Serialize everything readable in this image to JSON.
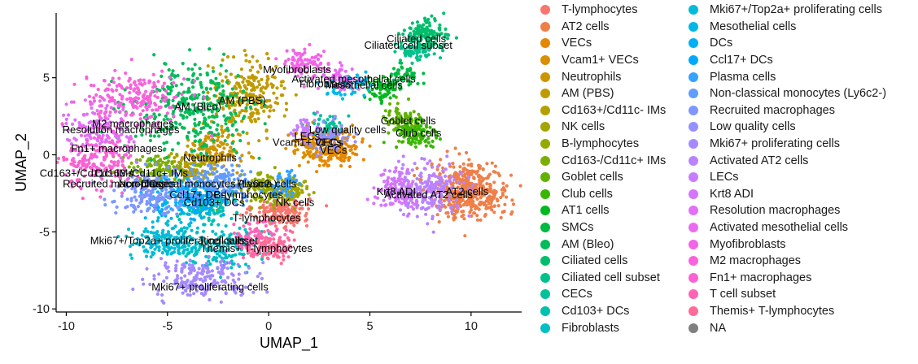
{
  "chart_data": {
    "type": "scatter",
    "title": "",
    "xlabel": "UMAP_1",
    "ylabel": "UMAP_2",
    "xlim": [
      -10.5,
      12.5
    ],
    "ylim": [
      -10.2,
      9.2
    ],
    "x_ticks": [
      {
        "value": -10,
        "label": "-10"
      },
      {
        "value": -5,
        "label": "-5"
      },
      {
        "value": 0,
        "label": "0"
      },
      {
        "value": 5,
        "label": "5"
      },
      {
        "value": 10,
        "label": "10"
      }
    ],
    "y_ticks": [
      {
        "value": -10,
        "label": "-10"
      },
      {
        "value": -5,
        "label": "-5"
      },
      {
        "value": 0,
        "label": "0"
      },
      {
        "value": 5,
        "label": "5"
      }
    ],
    "grid": false,
    "legend_position": "right",
    "clusters": [
      {
        "name": "T-lymphocytes",
        "color": "#F8766D",
        "center": [
          0.6,
          -3.7
        ],
        "spread": [
          0.7,
          0.5
        ],
        "n": 170
      },
      {
        "name": "AT2 cells",
        "color": "#EF7F49",
        "center": [
          9.9,
          -2.3
        ],
        "spread": [
          1.0,
          0.9
        ],
        "n": 460
      },
      {
        "name": "VECs",
        "color": "#E58700",
        "center": [
          3.3,
          0.4
        ],
        "spread": [
          0.6,
          0.6
        ],
        "n": 160
      },
      {
        "name": "Vcam1+ VECs",
        "color": "#D98F00",
        "center": [
          2.0,
          0.7
        ],
        "spread": [
          0.5,
          0.5
        ],
        "n": 90
      },
      {
        "name": "Neutrophils",
        "color": "#CC9600",
        "center": [
          -2.8,
          0.2
        ],
        "spread": [
          0.7,
          0.6
        ],
        "n": 150
      },
      {
        "name": "AM (PBS)",
        "color": "#C09B00",
        "center": [
          -1.0,
          3.9
        ],
        "spread": [
          0.9,
          1.1
        ],
        "n": 240
      },
      {
        "name": "Cd163+/Cd11c- IMs",
        "color": "#B3A000",
        "center": [
          -3.8,
          -1.0
        ],
        "spread": [
          0.6,
          0.5
        ],
        "n": 90
      },
      {
        "name": "NK cells",
        "color": "#A3A500",
        "center": [
          1.0,
          -2.3
        ],
        "spread": [
          0.5,
          0.4
        ],
        "n": 100
      },
      {
        "name": "B-lymphocytes",
        "color": "#93AA00",
        "center": [
          -0.2,
          -2.2
        ],
        "spread": [
          0.6,
          0.5
        ],
        "n": 110
      },
      {
        "name": "Cd163-/Cd11c+ IMs",
        "color": "#7CAE00",
        "center": [
          -5.5,
          -0.9
        ],
        "spread": [
          0.8,
          0.5
        ],
        "n": 110
      },
      {
        "name": "Goblet cells",
        "color": "#61B200",
        "center": [
          6.6,
          2.2
        ],
        "spread": [
          0.5,
          0.6
        ],
        "n": 90
      },
      {
        "name": "Club cells",
        "color": "#39B600",
        "center": [
          7.3,
          1.3
        ],
        "spread": [
          0.5,
          0.5
        ],
        "n": 100
      },
      {
        "name": "AT1 cells",
        "color": "#00B81F",
        "center": [
          5.6,
          4.2
        ],
        "spread": [
          0.5,
          0.5
        ],
        "n": 60
      },
      {
        "name": "SMCs",
        "color": "#00BA42",
        "center": [
          6.6,
          5.1
        ],
        "spread": [
          0.4,
          0.4
        ],
        "n": 50
      },
      {
        "name": "AM (Bleo)",
        "color": "#00BC59",
        "center": [
          -3.7,
          2.9
        ],
        "spread": [
          1.5,
          1.4
        ],
        "n": 330
      },
      {
        "name": "Ciliated cells",
        "color": "#00BE6C",
        "center": [
          7.7,
          7.8
        ],
        "spread": [
          0.5,
          0.5
        ],
        "n": 130
      },
      {
        "name": "Ciliated cell subset",
        "color": "#00C08B",
        "center": [
          7.3,
          6.9
        ],
        "spread": [
          0.5,
          0.4
        ],
        "n": 70
      },
      {
        "name": "CECs",
        "color": "#00C19A",
        "center": [
          3.0,
          1.9
        ],
        "spread": [
          0.4,
          0.4
        ],
        "n": 50
      },
      {
        "name": "Cd103+ DCs",
        "color": "#00C0AF",
        "center": [
          -3.1,
          -3.4
        ],
        "spread": [
          0.6,
          0.5
        ],
        "n": 110
      },
      {
        "name": "Fibroblasts",
        "color": "#00BFC4",
        "center": [
          -2.6,
          -5.9
        ],
        "spread": [
          1.2,
          0.8
        ],
        "n": 180
      },
      {
        "name": "Mki67+/Top2a+ proliferating cells",
        "color": "#00BCD8",
        "center": [
          -5.2,
          -5.6
        ],
        "spread": [
          0.8,
          0.6
        ],
        "n": 140
      },
      {
        "name": "Mesothelial cells",
        "color": "#00B8E7",
        "center": [
          3.8,
          4.5
        ],
        "spread": [
          0.5,
          0.4
        ],
        "n": 60
      },
      {
        "name": "DCs",
        "color": "#00B0F6",
        "center": [
          -4.6,
          -2.7
        ],
        "spread": [
          0.8,
          0.7
        ],
        "n": 140
      },
      {
        "name": "Ccl17+ DCs",
        "color": "#00A9FF",
        "center": [
          -3.3,
          -2.8
        ],
        "spread": [
          0.5,
          0.5
        ],
        "n": 90
      },
      {
        "name": "Plasma cells",
        "color": "#35A2FF",
        "center": [
          0.8,
          -2.0
        ],
        "spread": [
          0.4,
          0.4
        ],
        "n": 50
      },
      {
        "name": "Non-classical monocytes (Ly6c2-)",
        "color": "#619CFF",
        "center": [
          -2.3,
          -1.8
        ],
        "spread": [
          0.8,
          0.6
        ],
        "n": 150
      },
      {
        "name": "Recruited macrophages",
        "color": "#7F96FF",
        "center": [
          -5.8,
          -2.4
        ],
        "spread": [
          1.0,
          0.7
        ],
        "n": 180
      },
      {
        "name": "Low quality cells",
        "color": "#9590FF",
        "center": [
          3.0,
          1.3
        ],
        "spread": [
          0.5,
          0.5
        ],
        "n": 60
      },
      {
        "name": "Mki67+ proliferating cells",
        "color": "#A58AFF",
        "center": [
          -3.2,
          -8.0
        ],
        "spread": [
          1.3,
          0.6
        ],
        "n": 190
      },
      {
        "name": "Activated AT2 cells",
        "color": "#B983FF",
        "center": [
          7.8,
          -2.3
        ],
        "spread": [
          0.9,
          0.8
        ],
        "n": 240
      },
      {
        "name": "LECs",
        "color": "#C77CFF",
        "center": [
          1.8,
          1.7
        ],
        "spread": [
          0.4,
          0.4
        ],
        "n": 40
      },
      {
        "name": "Krt8 ADI",
        "color": "#D575FE",
        "center": [
          6.3,
          -2.4
        ],
        "spread": [
          0.5,
          0.6
        ],
        "n": 100
      },
      {
        "name": "Resolution macrophages",
        "color": "#E16FF8",
        "center": [
          -8.4,
          1.6
        ],
        "spread": [
          0.9,
          1.1
        ],
        "n": 170
      },
      {
        "name": "Activated mesothelial cells",
        "color": "#EA6AF1",
        "center": [
          3.6,
          5.0
        ],
        "spread": [
          0.5,
          0.4
        ],
        "n": 50
      },
      {
        "name": "Myofibroblasts",
        "color": "#F265E7",
        "center": [
          1.8,
          5.9
        ],
        "spread": [
          0.5,
          0.5
        ],
        "n": 90
      },
      {
        "name": "M2 macrophages",
        "color": "#F862DC",
        "center": [
          -6.6,
          3.6
        ],
        "spread": [
          1.2,
          0.9
        ],
        "n": 200
      },
      {
        "name": "Fn1+ macrophages",
        "color": "#FC61D1",
        "center": [
          -8.5,
          -0.5
        ],
        "spread": [
          0.9,
          1.0
        ],
        "n": 160
      },
      {
        "name": "T cell subset",
        "color": "#FF63B6",
        "center": [
          -0.5,
          -5.4
        ],
        "spread": [
          0.6,
          0.5
        ],
        "n": 90
      },
      {
        "name": "Themis+ T-lymphocytes",
        "color": "#FF6A98",
        "center": [
          0.1,
          -6.1
        ],
        "spread": [
          0.6,
          0.4
        ],
        "n": 100
      },
      {
        "name": "NA",
        "color": "#7F7F7F",
        "center": [
          0.0,
          0.0
        ],
        "spread": [
          0.1,
          0.1
        ],
        "n": 0
      }
    ],
    "annotations": [
      {
        "text": "Ciliated cells",
        "x": 7.3,
        "y": 7.5
      },
      {
        "text": "Ciliated cell subset",
        "x": 6.9,
        "y": 7.1
      },
      {
        "text": "Myofibroblasts",
        "x": 1.4,
        "y": 5.5
      },
      {
        "text": "Activated mesothelial cells",
        "x": 4.2,
        "y": 4.9
      },
      {
        "text": "Fibroblasts",
        "x": 2.8,
        "y": 4.6
      },
      {
        "text": "Mesothelial cells",
        "x": 4.7,
        "y": 4.5
      },
      {
        "text": "AM (PBS)",
        "x": -1.3,
        "y": 3.5
      },
      {
        "text": "AM (Bleo)",
        "x": -3.5,
        "y": 3.1
      },
      {
        "text": "Goblet cells",
        "x": 6.9,
        "y": 2.2
      },
      {
        "text": "M2 macrophages",
        "x": -6.7,
        "y": 2.0
      },
      {
        "text": "Resolution macrophages",
        "x": -7.3,
        "y": 1.6
      },
      {
        "text": "Low quality cells",
        "x": 3.9,
        "y": 1.6
      },
      {
        "text": "Club cells",
        "x": 7.4,
        "y": 1.4
      },
      {
        "text": "LECs",
        "x": 1.9,
        "y": 1.2
      },
      {
        "text": "Vcam1+ VECs",
        "x": 1.9,
        "y": 0.8
      },
      {
        "text": "CECs",
        "x": 3.0,
        "y": 0.8
      },
      {
        "text": "VECs",
        "x": 3.2,
        "y": 0.3
      },
      {
        "text": "Fn1+ macrophages",
        "x": -7.5,
        "y": 0.4
      },
      {
        "text": "Neutrophils",
        "x": -2.9,
        "y": -0.2
      },
      {
        "text": "Cd163+/Cd11c- IMs",
        "x": -9.0,
        "y": -1.2
      },
      {
        "text": "Cd163-/Cd11c+ IMs",
        "x": -6.3,
        "y": -1.2
      },
      {
        "text": "Recruited macrophages",
        "x": -7.4,
        "y": -1.9
      },
      {
        "text": "DCs",
        "x": -5.8,
        "y": -1.9
      },
      {
        "text": "Non-classical monocytes (Ly6c2-)",
        "x": -3.5,
        "y": -1.9
      },
      {
        "text": "Plasma cells",
        "x": -0.1,
        "y": -1.9
      },
      {
        "text": "Krt8 ADI",
        "x": 6.3,
        "y": -2.4
      },
      {
        "text": "AT2 cells",
        "x": 9.8,
        "y": -2.4
      },
      {
        "text": "Activated AT2 cells",
        "x": 7.9,
        "y": -2.6
      },
      {
        "text": "Ccl17+ DCs",
        "x": -3.5,
        "y": -2.6
      },
      {
        "text": "B-lymphocytes",
        "x": -1.0,
        "y": -2.6
      },
      {
        "text": "NK cells",
        "x": 1.3,
        "y": -3.1
      },
      {
        "text": "Cd103+ DCs",
        "x": -2.7,
        "y": -3.1
      },
      {
        "text": "T-lymphocytes",
        "x": -0.1,
        "y": -4.1
      },
      {
        "text": "Mki67+/Top2a+ proliferating cells",
        "x": -5.0,
        "y": -5.6
      },
      {
        "text": "T cell subset",
        "x": -2.0,
        "y": -5.6
      },
      {
        "text": "Themis+ T-lymphocytes",
        "x": -0.6,
        "y": -6.1
      },
      {
        "text": "Mki67+ proliferating cells",
        "x": -2.9,
        "y": -8.6
      }
    ]
  }
}
